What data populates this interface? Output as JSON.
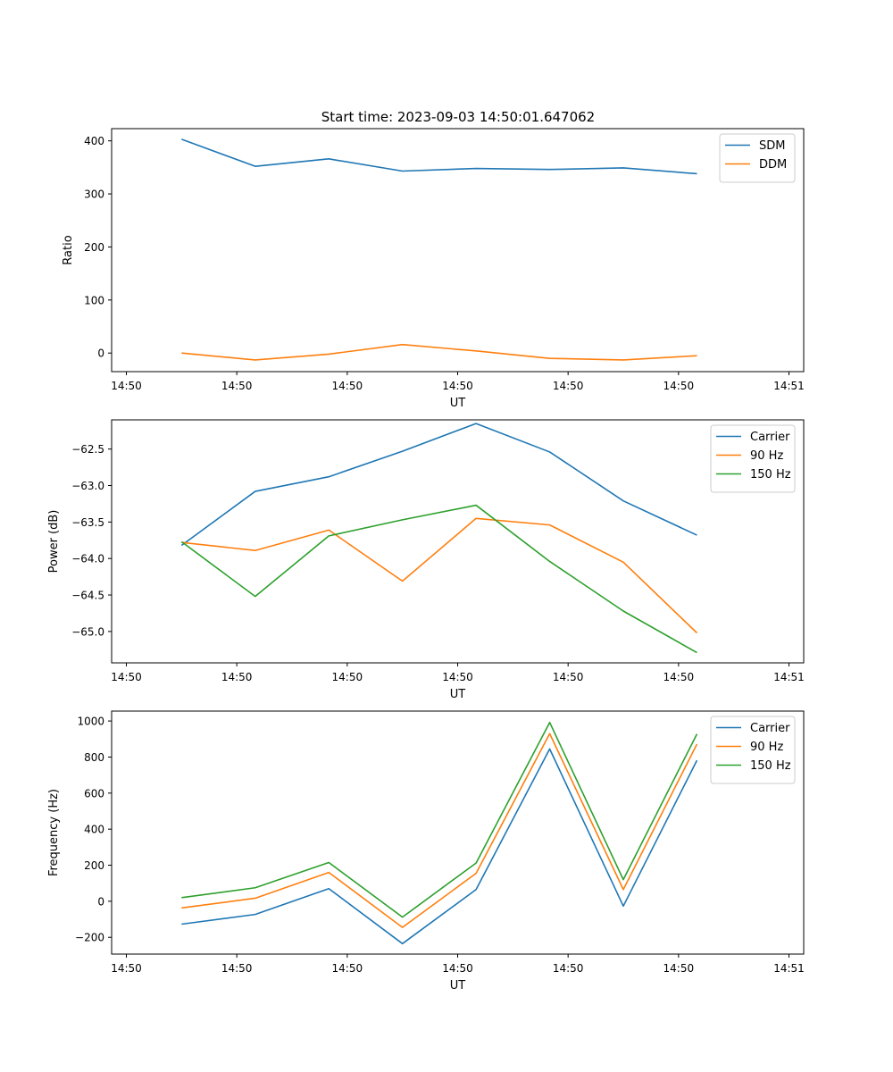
{
  "figure_title": "Start time: 2023-09-03 14:50:01.647062",
  "chart_data": [
    {
      "type": "line",
      "title": "Start time: 2023-09-03 14:50:01.647062",
      "xlabel": "UT",
      "ylabel": "Ratio",
      "x_tick_labels": [
        "14:50",
        "14:50",
        "14:50",
        "14:50",
        "14:50",
        "14:50",
        "14:51"
      ],
      "y_ticks": [
        0,
        100,
        200,
        300,
        400
      ],
      "y_tick_labels": [
        "0",
        "100",
        "200",
        "300",
        "400"
      ],
      "ylim": [
        -35,
        423
      ],
      "legend_position": "top-right",
      "series": [
        {
          "name": "SDM",
          "color": "#1f77b4",
          "values": [
            403,
            352,
            366,
            343,
            348,
            346,
            349,
            338
          ]
        },
        {
          "name": "DDM",
          "color": "#ff7f0e",
          "values": [
            0,
            -13,
            -2,
            16,
            4,
            -10,
            -13,
            -5
          ]
        }
      ]
    },
    {
      "type": "line",
      "xlabel": "UT",
      "ylabel": "Power (dB)",
      "x_tick_labels": [
        "14:50",
        "14:50",
        "14:50",
        "14:50",
        "14:50",
        "14:50",
        "14:51"
      ],
      "y_ticks": [
        -65.0,
        -64.5,
        -64.0,
        -63.5,
        -63.0,
        -62.5
      ],
      "y_tick_labels": [
        "−65.0",
        "−64.5",
        "−64.0",
        "−63.5",
        "−63.0",
        "−62.5"
      ],
      "ylim": [
        -65.43,
        -62.1
      ],
      "legend_position": "top-right",
      "series": [
        {
          "name": "Carrier",
          "color": "#1f77b4",
          "values": [
            -63.82,
            -63.08,
            -62.88,
            -62.53,
            -62.15,
            -62.54,
            -63.21,
            -63.68
          ]
        },
        {
          "name": "90 Hz",
          "color": "#ff7f0e",
          "values": [
            -63.78,
            -63.89,
            -63.61,
            -64.31,
            -63.45,
            -63.54,
            -64.05,
            -65.02
          ]
        },
        {
          "name": "150 Hz",
          "color": "#2ca02c",
          "values": [
            -63.77,
            -64.52,
            -63.69,
            -63.47,
            -63.27,
            -64.04,
            -64.72,
            -65.29
          ]
        }
      ]
    },
    {
      "type": "line",
      "xlabel": "UT",
      "ylabel": "Frequency (Hz)",
      "x_tick_labels": [
        "14:50",
        "14:50",
        "14:50",
        "14:50",
        "14:50",
        "14:50",
        "14:51"
      ],
      "y_ticks": [
        -200,
        0,
        200,
        400,
        600,
        800,
        1000
      ],
      "y_tick_labels": [
        "−200",
        "0",
        "200",
        "400",
        "600",
        "800",
        "1000"
      ],
      "ylim": [
        -293,
        1055
      ],
      "legend_position": "top-right",
      "series": [
        {
          "name": "Carrier",
          "color": "#1f77b4",
          "values": [
            -127,
            -73,
            70,
            -235,
            65,
            845,
            -27,
            782
          ]
        },
        {
          "name": "90 Hz",
          "color": "#ff7f0e",
          "values": [
            -37,
            17,
            160,
            -145,
            155,
            930,
            65,
            872
          ]
        },
        {
          "name": "150 Hz",
          "color": "#2ca02c",
          "values": [
            20,
            75,
            215,
            -88,
            212,
            992,
            120,
            928
          ]
        }
      ]
    }
  ]
}
